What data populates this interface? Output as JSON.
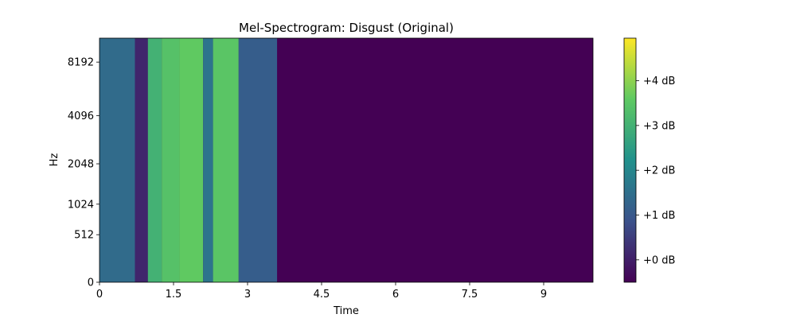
{
  "chart_data": {
    "type": "heatmap",
    "title": "Mel-Spectrogram: Disgust (Original)",
    "xlabel": "Time",
    "ylabel": "Hz",
    "xlim": [
      0,
      10
    ],
    "x_ticks": [
      0,
      1.5,
      3,
      4.5,
      6,
      7.5,
      9
    ],
    "x_tick_labels": [
      "0",
      "1.5",
      "3",
      "4.5",
      "6",
      "7.5",
      "9"
    ],
    "y_scale": "mel",
    "ylim": [
      0,
      11025
    ],
    "y_ticks": [
      0,
      512,
      1024,
      2048,
      4096,
      8192
    ],
    "y_tick_labels": [
      "0",
      "512",
      "1024",
      "2048",
      "4096",
      "8192"
    ],
    "colormap": "viridis",
    "colorbar": {
      "range_db": [
        -0.5,
        4.95
      ],
      "ticks": [
        0,
        1,
        2,
        3,
        4
      ],
      "tick_labels": [
        "+0 dB",
        "+1 dB",
        "+2 dB",
        "+3 dB",
        "+4 dB"
      ]
    },
    "energy_segments": [
      {
        "t_start": 0.0,
        "t_end": 0.72,
        "level_db": 1.4
      },
      {
        "t_start": 0.72,
        "t_end": 0.98,
        "level_db": 0.1
      },
      {
        "t_start": 0.98,
        "t_end": 1.26,
        "level_db": 3.0
      },
      {
        "t_start": 1.26,
        "t_end": 1.62,
        "level_db": 3.4
      },
      {
        "t_start": 1.62,
        "t_end": 2.1,
        "level_db": 3.6
      },
      {
        "t_start": 2.1,
        "t_end": 2.3,
        "level_db": 1.6
      },
      {
        "t_start": 2.3,
        "t_end": 2.82,
        "level_db": 3.5
      },
      {
        "t_start": 2.82,
        "t_end": 3.6,
        "level_db": 1.1
      },
      {
        "t_start": 3.6,
        "t_end": 10.0,
        "level_db": -0.5
      }
    ]
  }
}
